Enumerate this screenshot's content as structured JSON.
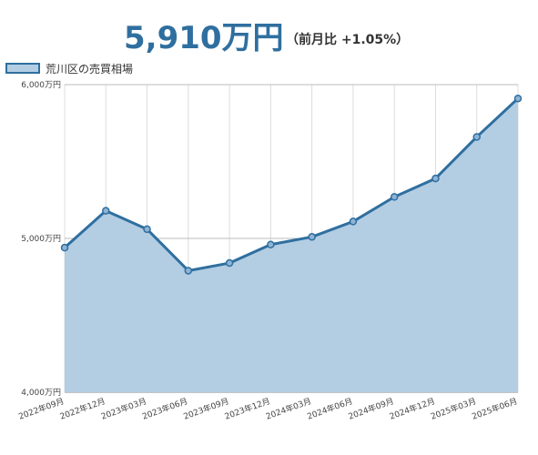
{
  "header": {
    "price": "5,910万円",
    "change": "（前月比 +1.05%）"
  },
  "chart_data": {
    "type": "area",
    "categories": [
      "2022年09月",
      "2022年12月",
      "2023年03月",
      "2023年06月",
      "2023年09月",
      "2023年12月",
      "2024年03月",
      "2024年06月",
      "2024年09月",
      "2024年12月",
      "2025年03月",
      "2025年06月"
    ],
    "series": [
      {
        "name": "荒川区の売買相場",
        "values": [
          4940,
          5180,
          5060,
          4790,
          4840,
          4960,
          5010,
          5110,
          5270,
          5390,
          5660,
          5910
        ]
      }
    ],
    "yticks": [
      {
        "value": 6000,
        "label": "6,000万円"
      },
      {
        "value": 5000,
        "label": "5,000万円"
      },
      {
        "value": 4000,
        "label": "4,000万円"
      }
    ],
    "ylim": [
      4000,
      6000
    ],
    "grid": true,
    "legend_position": "top-left",
    "colors": {
      "line": "#2f6f9f",
      "fill": "#b3cde3",
      "accent": "#2f6f9f"
    }
  }
}
